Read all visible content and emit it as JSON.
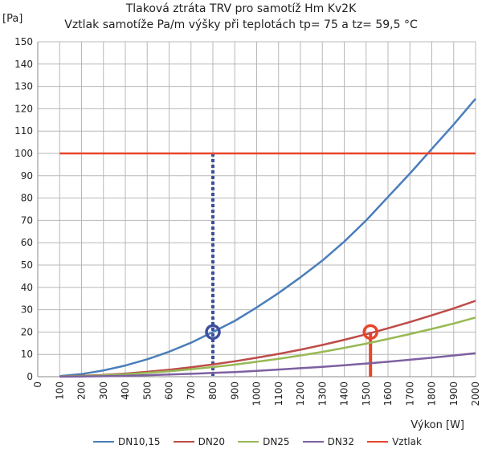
{
  "chart_data": {
    "type": "line",
    "title": "Tlaková ztráta TRV pro samotíž Hm Kv2K",
    "subtitle": "Vztlak samotíže Pa/m výšky při teplotách tp= 75 a tz= 59,5 °C",
    "xlabel": "Výkon  [W]",
    "ylabel": "[Pa]",
    "xlim": [
      0,
      2000
    ],
    "ylim": [
      0,
      150
    ],
    "xticks": [
      0,
      100,
      200,
      300,
      400,
      500,
      600,
      700,
      800,
      900,
      1000,
      1100,
      1200,
      1300,
      1400,
      1500,
      1600,
      1700,
      1800,
      1900,
      2000
    ],
    "yticks": [
      0,
      10,
      20,
      30,
      40,
      50,
      60,
      70,
      80,
      90,
      100,
      110,
      120,
      130,
      140,
      150
    ],
    "grid": true,
    "legend_position": "bottom",
    "series": [
      {
        "name": "DN10,15",
        "color": "#4a7ebb",
        "x": [
          100,
          200,
          300,
          400,
          500,
          600,
          700,
          800,
          900,
          1000,
          1100,
          1200,
          1300,
          1400,
          1500,
          1600,
          1700,
          1800,
          1900,
          2000
        ],
        "y": [
          0.3,
          1.2,
          2.8,
          5,
          7.8,
          11.2,
          15.2,
          20,
          25,
          31,
          37.5,
          44.5,
          52,
          60.5,
          70,
          80.5,
          91,
          102,
          113,
          124.5
        ]
      },
      {
        "name": "DN20",
        "color": "#be4b48",
        "x": [
          100,
          200,
          300,
          400,
          500,
          600,
          700,
          800,
          900,
          1000,
          1100,
          1200,
          1300,
          1400,
          1500,
          1600,
          1700,
          1800,
          1900,
          2000
        ],
        "y": [
          0.1,
          0.4,
          0.8,
          1.4,
          2.2,
          3.1,
          4.2,
          5.5,
          6.9,
          8.5,
          10.2,
          12.1,
          14.2,
          16.5,
          19,
          21.7,
          24.5,
          27.5,
          30.6,
          34
        ]
      },
      {
        "name": "DN25",
        "color": "#98b954",
        "x": [
          100,
          200,
          300,
          400,
          500,
          600,
          700,
          800,
          900,
          1000,
          1100,
          1200,
          1300,
          1400,
          1500,
          1600,
          1700,
          1800,
          1900,
          2000
        ],
        "y": [
          0.1,
          0.3,
          0.6,
          1.1,
          1.7,
          2.4,
          3.3,
          4.3,
          5.4,
          6.7,
          8,
          9.5,
          11.1,
          12.9,
          14.8,
          16.9,
          19.1,
          21.4,
          23.8,
          26.5
        ]
      },
      {
        "name": "DN32",
        "color": "#7d60a0",
        "x": [
          100,
          200,
          300,
          400,
          500,
          600,
          700,
          800,
          900,
          1000,
          1100,
          1200,
          1300,
          1400,
          1500,
          1600,
          1700,
          1800,
          1900,
          2000
        ],
        "y": [
          0,
          0.1,
          0.2,
          0.4,
          0.7,
          1,
          1.3,
          1.7,
          2.1,
          2.6,
          3.2,
          3.8,
          4.4,
          5.1,
          5.9,
          6.7,
          7.6,
          8.5,
          9.5,
          10.5
        ]
      },
      {
        "name": "Vztlak",
        "color": "#e8452a",
        "x": [
          100,
          2000
        ],
        "y": [
          100,
          100
        ]
      }
    ],
    "markers": [
      {
        "x": 800,
        "y": 20,
        "color": "#3d4f9e",
        "guide": "dotted",
        "guide_from": 100,
        "guide_to": 0
      },
      {
        "x": 1520,
        "y": 20,
        "color": "#e8452a",
        "guide": "solid",
        "guide_from": 20,
        "guide_to": 0
      }
    ]
  }
}
